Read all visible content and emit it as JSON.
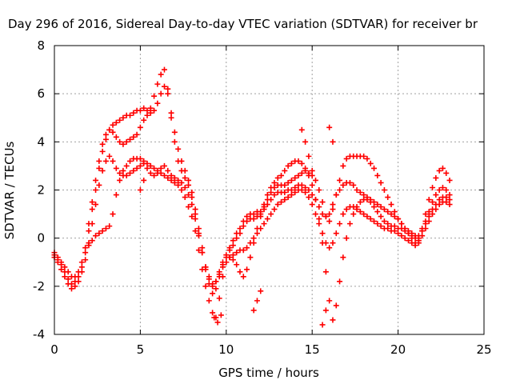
{
  "chart_data": {
    "type": "scatter",
    "title": "Day 296 of 2016, Sidereal Day-to-day VTEC variation (SDTVAR) for receiver br",
    "xlabel": "GPS time / hours",
    "ylabel": "SDTVAR / TECUs",
    "xlim": [
      0,
      25
    ],
    "ylim": [
      -4,
      8
    ],
    "xticks": [
      0,
      5,
      10,
      15,
      20,
      25
    ],
    "yticks": [
      -4,
      -2,
      0,
      2,
      4,
      6,
      8
    ],
    "grid": true,
    "marker": "plus",
    "color": "#ff0000",
    "series": [
      {
        "x": [
          0.0,
          0.2,
          0.4,
          0.6,
          0.8,
          1.0,
          1.2,
          1.4,
          1.6,
          1.8,
          2.0,
          2.2,
          2.4,
          2.6,
          2.8,
          3.0,
          3.2,
          3.4,
          3.6,
          3.8,
          4.0,
          4.2,
          4.4,
          4.6,
          4.8,
          5.0,
          5.2,
          5.4,
          5.6,
          5.8,
          6.0,
          6.2,
          6.4,
          6.6,
          6.8,
          7.0,
          7.2,
          7.4,
          7.6,
          7.8,
          8.0,
          8.2,
          8.4,
          8.6,
          8.8,
          9.0,
          9.2,
          9.4,
          9.6,
          9.8,
          10.0,
          10.2,
          10.4,
          10.6,
          10.8,
          11.0,
          11.2,
          11.4,
          11.6,
          11.8,
          12.0,
          12.2,
          12.4,
          12.6,
          12.8,
          13.0,
          13.2,
          13.4,
          13.6,
          13.8,
          14.0,
          14.2,
          14.4,
          14.6,
          14.8,
          15.0,
          15.2,
          15.4,
          15.6,
          15.8,
          16.0,
          16.2,
          16.4,
          16.6,
          16.8,
          17.0,
          17.2,
          17.4,
          17.6,
          17.8,
          18.0,
          18.2,
          18.4,
          18.6,
          18.8,
          19.0,
          19.2,
          19.4,
          19.6,
          19.8,
          20.0,
          20.2,
          20.4,
          20.6,
          20.8,
          21.0,
          21.2,
          21.4,
          21.6,
          21.8,
          22.0,
          22.2,
          22.4,
          22.6,
          22.8,
          23.0
        ],
        "y": [
          -0.7,
          -0.9,
          -1.1,
          -1.4,
          -1.7,
          -1.9,
          -1.8,
          -1.6,
          -1.2,
          -0.6,
          0.3,
          1.2,
          2.0,
          2.9,
          3.6,
          4.1,
          4.5,
          4.7,
          4.8,
          4.9,
          5.0,
          5.1,
          5.1,
          5.2,
          5.3,
          5.3,
          5.4,
          5.3,
          5.2,
          5.3,
          5.6,
          6.0,
          6.3,
          6.0,
          5.2,
          4.4,
          3.7,
          3.2,
          2.8,
          2.4,
          1.9,
          1.2,
          0.4,
          -0.4,
          -1.2,
          -1.7,
          -2.0,
          -1.8,
          -1.4,
          -1.0,
          -0.7,
          -0.4,
          -0.1,
          0.2,
          0.4,
          0.7,
          0.9,
          1.0,
          1.0,
          1.1,
          1.1,
          1.3,
          1.6,
          1.9,
          2.1,
          2.2,
          2.2,
          2.2,
          2.3,
          2.4,
          2.5,
          2.6,
          2.7,
          2.8,
          2.7,
          2.6,
          2.4,
          2.0,
          1.5,
          0.9,
          0.7,
          1.2,
          1.8,
          2.4,
          3.0,
          3.3,
          3.4,
          3.4,
          3.4,
          3.4,
          3.4,
          3.3,
          3.1,
          2.9,
          2.6,
          2.3,
          2.0,
          1.7,
          1.4,
          1.1,
          0.8,
          0.6,
          0.4,
          0.2,
          0.0,
          -0.2,
          -0.1,
          0.4,
          1.0,
          1.6,
          2.1,
          2.5,
          2.8,
          2.9,
          2.7,
          2.4
        ]
      },
      {
        "x": [
          0.0,
          0.2,
          0.4,
          0.6,
          0.8,
          1.0,
          1.2,
          1.4,
          1.6,
          1.8,
          2.0,
          2.2,
          2.4,
          2.6,
          2.8,
          3.0,
          3.2,
          3.4,
          3.6,
          3.8,
          4.0,
          4.2,
          4.4,
          4.6,
          4.8,
          5.0,
          5.2,
          5.4,
          5.6,
          5.8,
          6.0,
          6.2,
          6.4,
          6.6,
          6.8,
          7.0,
          7.2,
          7.4,
          7.6,
          7.8,
          8.0,
          8.2,
          8.4,
          8.6,
          8.8,
          9.0,
          9.2,
          9.4,
          9.6,
          9.8,
          10.0,
          10.2,
          10.4,
          10.6,
          10.8,
          11.0,
          11.2,
          11.4,
          11.6,
          11.8,
          12.0,
          12.2,
          12.4,
          12.6,
          12.8,
          13.0,
          13.2,
          13.4,
          13.6,
          13.8,
          14.0,
          14.2,
          14.4,
          14.6,
          14.8,
          15.0,
          15.2,
          15.4,
          15.6,
          15.8,
          16.0,
          16.2,
          16.4,
          16.6,
          16.8,
          17.0,
          17.2,
          17.4,
          17.6,
          17.8,
          18.0,
          18.2,
          18.4,
          18.6,
          18.8,
          19.0,
          19.2,
          19.4,
          19.6,
          19.8,
          20.0,
          20.2,
          20.4,
          20.6,
          20.8,
          21.0,
          21.2,
          21.4,
          21.6,
          21.8,
          22.0,
          22.2,
          22.4,
          22.6,
          22.8,
          23.0
        ],
        "y": [
          -0.6,
          -0.8,
          -1.0,
          -1.2,
          -1.4,
          -1.6,
          -1.6,
          -1.4,
          -1.0,
          -0.4,
          0.6,
          1.5,
          2.4,
          3.2,
          3.9,
          4.3,
          4.5,
          4.4,
          4.2,
          4.0,
          3.9,
          4.0,
          4.1,
          4.2,
          4.3,
          4.6,
          4.9,
          5.1,
          5.4,
          5.9,
          6.4,
          6.8,
          7.0,
          6.2,
          5.0,
          4.0,
          3.2,
          2.8,
          2.5,
          2.2,
          1.7,
          1.0,
          0.2,
          -0.6,
          -1.3,
          -1.9,
          -2.3,
          -2.1,
          -1.6,
          -1.1,
          -0.8,
          -0.5,
          -0.3,
          0.0,
          0.2,
          0.5,
          0.7,
          0.8,
          0.8,
          0.9,
          1.0,
          1.2,
          1.4,
          1.6,
          1.8,
          1.9,
          1.9,
          1.9,
          2.0,
          2.0,
          2.1,
          2.2,
          2.2,
          2.1,
          2.0,
          1.8,
          1.6,
          1.3,
          1.0,
          0.9,
          1.0,
          1.4,
          1.8,
          2.0,
          2.2,
          2.3,
          2.3,
          2.2,
          2.0,
          1.9,
          1.8,
          1.7,
          1.6,
          1.5,
          1.4,
          1.3,
          1.2,
          1.1,
          1.0,
          0.9,
          0.8,
          0.6,
          0.4,
          0.2,
          0.1,
          0.0,
          0.0,
          0.3,
          0.7,
          1.1,
          1.5,
          1.8,
          2.0,
          2.1,
          2.0,
          1.8
        ]
      },
      {
        "x": [
          0.0,
          0.2,
          0.4,
          0.6,
          0.8,
          1.0,
          1.2,
          1.4,
          1.6,
          1.8,
          2.0,
          2.2,
          2.4,
          2.6,
          2.8,
          3.0,
          3.2,
          3.4,
          3.6,
          3.8,
          4.0,
          4.2,
          4.4,
          4.6,
          4.8,
          5.0,
          5.2,
          5.4,
          5.6,
          5.8,
          6.0,
          6.2,
          6.4,
          6.6,
          6.8,
          7.0,
          7.2,
          7.4,
          7.6,
          7.8,
          8.0,
          8.2,
          8.4,
          8.6,
          8.8,
          9.0,
          9.2,
          9.4,
          9.6,
          9.8,
          10.0,
          10.2,
          10.4,
          10.6,
          10.8,
          11.0,
          11.2,
          11.4,
          11.6,
          11.8,
          12.0,
          12.2,
          12.4,
          12.6,
          12.8,
          13.0,
          13.2,
          13.4,
          13.6,
          13.8,
          14.0,
          14.2,
          14.4,
          14.6,
          14.8,
          15.0,
          15.2,
          15.4,
          15.6,
          15.8,
          16.0,
          16.2,
          16.4,
          16.6,
          16.8,
          17.0,
          17.2,
          17.4,
          17.6,
          17.8,
          18.0,
          18.2,
          18.4,
          18.6,
          18.8,
          19.0,
          19.2,
          19.4,
          19.6,
          19.8,
          20.0,
          20.2,
          20.4,
          20.6,
          20.8,
          21.0,
          21.2,
          21.4,
          21.6,
          21.8,
          22.0,
          22.2,
          22.4,
          22.6,
          22.8,
          23.0
        ],
        "y": [
          -0.8,
          -1.0,
          -1.3,
          -1.6,
          -1.9,
          -2.1,
          -2.0,
          -1.8,
          -1.4,
          -0.9,
          -0.2,
          0.6,
          1.4,
          2.2,
          2.8,
          3.2,
          3.4,
          3.2,
          2.9,
          2.7,
          2.6,
          2.6,
          2.7,
          2.8,
          2.9,
          3.0,
          3.1,
          2.9,
          2.7,
          2.6,
          2.7,
          2.9,
          3.0,
          2.8,
          2.6,
          2.5,
          2.4,
          2.3,
          2.1,
          1.8,
          1.4,
          0.8,
          0.1,
          -0.6,
          -1.2,
          -1.6,
          -1.9,
          -1.8,
          -1.5,
          -1.2,
          -1.0,
          -0.8,
          -0.7,
          -0.6,
          -0.5,
          -0.5,
          -0.4,
          -0.2,
          0.0,
          0.2,
          0.4,
          0.6,
          0.8,
          1.0,
          1.2,
          1.4,
          1.5,
          1.6,
          1.7,
          1.8,
          1.9,
          2.0,
          2.0,
          1.9,
          1.7,
          1.4,
          1.0,
          0.6,
          0.2,
          -0.2,
          -0.4,
          -0.2,
          0.2,
          0.6,
          1.0,
          1.2,
          1.3,
          1.3,
          1.2,
          1.1,
          1.0,
          0.9,
          0.8,
          0.7,
          0.6,
          0.5,
          0.4,
          0.4,
          0.3,
          0.3,
          0.2,
          0.1,
          0.0,
          -0.1,
          -0.2,
          -0.3,
          -0.2,
          0.1,
          0.4,
          0.7,
          1.0,
          1.2,
          1.4,
          1.5,
          1.5,
          1.4
        ]
      },
      {
        "x": [
          2.0,
          2.2,
          2.4,
          2.6,
          2.8,
          3.0,
          3.2,
          3.4,
          3.6,
          3.8,
          4.0,
          4.2,
          4.4,
          4.6,
          4.8,
          5.0,
          5.2,
          5.4,
          5.6,
          5.8,
          6.0,
          6.2,
          6.4,
          6.6,
          6.8,
          7.0,
          7.2,
          7.4,
          7.6,
          7.8,
          8.0,
          8.2,
          8.4,
          8.6,
          8.8,
          9.0,
          9.2,
          9.4,
          9.6,
          9.8,
          10.0,
          10.2,
          10.4,
          10.6,
          10.8,
          11.0,
          11.2,
          11.4,
          11.6,
          11.8,
          12.0,
          12.2,
          12.4,
          12.6,
          12.8,
          13.0,
          13.2,
          13.4,
          13.6,
          13.8,
          14.0,
          14.2,
          14.4,
          14.6,
          14.8,
          15.0,
          15.2,
          15.4,
          15.6,
          15.8,
          16.0,
          16.2,
          16.4,
          16.6,
          16.8,
          17.0,
          17.2,
          17.4,
          17.6,
          17.8,
          18.0,
          18.2,
          18.4,
          18.6,
          18.8,
          19.0,
          19.2,
          19.4,
          19.6,
          19.8,
          20.0,
          20.2,
          20.4,
          20.6,
          20.8,
          21.0,
          21.2,
          21.4,
          21.6,
          21.8,
          22.0,
          22.2,
          22.4,
          22.6,
          22.8,
          23.0
        ],
        "y": [
          -0.3,
          -0.1,
          0.1,
          0.2,
          0.3,
          0.4,
          0.5,
          1.0,
          1.8,
          2.4,
          2.8,
          3.0,
          3.2,
          3.3,
          3.3,
          3.3,
          3.2,
          3.1,
          3.0,
          2.9,
          2.8,
          2.7,
          2.6,
          2.5,
          2.4,
          2.3,
          2.2,
          2.0,
          1.7,
          1.3,
          0.9,
          0.3,
          -0.5,
          -1.3,
          -2.0,
          -2.6,
          -3.1,
          -3.3,
          -2.5,
          -1.6,
          -1.0,
          -0.8,
          -0.9,
          -1.1,
          -1.4,
          -1.6,
          -1.3,
          -0.8,
          -0.2,
          0.4,
          0.9,
          1.4,
          1.8,
          2.1,
          2.3,
          2.5,
          2.6,
          2.8,
          3.0,
          3.1,
          3.2,
          3.2,
          3.1,
          2.9,
          2.6,
          2.2,
          1.6,
          0.8,
          -0.2,
          -1.4,
          -2.6,
          -3.4,
          -2.8,
          -1.8,
          -0.8,
          0.0,
          0.6,
          1.0,
          1.3,
          1.5,
          1.6,
          1.6,
          1.5,
          1.3,
          1.1,
          0.9,
          0.7,
          0.6,
          0.5,
          0.5,
          0.4,
          0.4,
          0.3,
          0.3,
          0.2,
          0.1,
          0.1,
          0.3,
          0.6,
          0.9,
          1.2,
          1.4,
          1.6,
          1.7,
          1.7,
          1.6
        ]
      },
      {
        "x": [
          11.6,
          11.8,
          12.0,
          14.4,
          14.6,
          14.8,
          15.0,
          15.6,
          15.8,
          16.0,
          16.2,
          5.0,
          5.2,
          9.3,
          9.5,
          9.7
        ],
        "y": [
          -3.0,
          -2.6,
          -2.2,
          4.5,
          4.0,
          3.4,
          2.8,
          -3.6,
          -3.0,
          4.6,
          4.0,
          2.0,
          2.4,
          -3.3,
          -3.5,
          -3.2
        ]
      }
    ]
  }
}
